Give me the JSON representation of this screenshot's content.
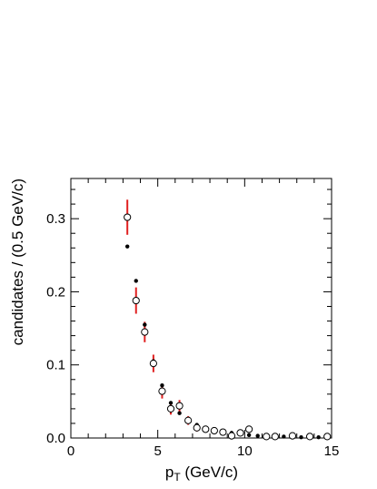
{
  "chart_data": {
    "type": "scatter",
    "xlabel": "p",
    "xlabel_sub": "T",
    "xlabel_unit": "(GeV/c)",
    "ylabel": "candidates / (0.5 GeV/c)",
    "xlim": [
      0,
      15
    ],
    "ylim": [
      0,
      0.355
    ],
    "x_ticks": [
      0,
      5,
      10,
      15
    ],
    "x_tick_labels": [
      "0",
      "5",
      "10",
      "15"
    ],
    "y_ticks": [
      0.0,
      0.1,
      0.2,
      0.3
    ],
    "y_tick_labels": [
      "0.0",
      "0.1",
      "0.2",
      "0.3"
    ],
    "grid": false,
    "legend": "none",
    "colors": {
      "axis": "#000000",
      "error_bar": "#e02020",
      "points": "#000000",
      "open_marker_fill": "#ffffff"
    },
    "series": [
      {
        "marker": "filled-circle",
        "points": [
          {
            "x": 3.25,
            "y": 0.262
          },
          {
            "x": 3.75,
            "y": 0.215
          },
          {
            "x": 4.25,
            "y": 0.155
          },
          {
            "x": 4.75,
            "y": 0.105
          },
          {
            "x": 5.25,
            "y": 0.072
          },
          {
            "x": 5.75,
            "y": 0.048
          },
          {
            "x": 6.25,
            "y": 0.034
          },
          {
            "x": 6.75,
            "y": 0.026
          },
          {
            "x": 7.25,
            "y": 0.018
          },
          {
            "x": 7.75,
            "y": 0.014
          },
          {
            "x": 8.25,
            "y": 0.011
          },
          {
            "x": 8.75,
            "y": 0.009
          },
          {
            "x": 9.25,
            "y": 0.007
          },
          {
            "x": 9.75,
            "y": 0.005
          },
          {
            "x": 10.25,
            "y": 0.004
          },
          {
            "x": 10.75,
            "y": 0.003
          },
          {
            "x": 11.25,
            "y": 0.003
          },
          {
            "x": 11.75,
            "y": 0.002
          },
          {
            "x": 12.25,
            "y": 0.002
          },
          {
            "x": 12.75,
            "y": 0.002
          },
          {
            "x": 13.25,
            "y": 0.001
          },
          {
            "x": 13.75,
            "y": 0.001
          },
          {
            "x": 14.25,
            "y": 0.001
          },
          {
            "x": 14.75,
            "y": 0.001
          }
        ]
      },
      {
        "marker": "open-circle",
        "points": [
          {
            "x": 3.25,
            "y": 0.302,
            "err": 0.024
          },
          {
            "x": 3.75,
            "y": 0.188,
            "err": 0.018
          },
          {
            "x": 4.25,
            "y": 0.145,
            "err": 0.014
          },
          {
            "x": 4.75,
            "y": 0.102,
            "err": 0.012
          },
          {
            "x": 5.25,
            "y": 0.064,
            "err": 0.01
          },
          {
            "x": 5.75,
            "y": 0.04,
            "err": 0.008
          },
          {
            "x": 6.25,
            "y": 0.044,
            "err": 0.008
          },
          {
            "x": 6.75,
            "y": 0.024,
            "err": 0.006
          },
          {
            "x": 7.25,
            "y": 0.014,
            "err": 0.005
          },
          {
            "x": 7.75,
            "y": 0.012,
            "err": 0.004
          },
          {
            "x": 8.25,
            "y": 0.01,
            "err": 0.004
          },
          {
            "x": 8.75,
            "y": 0.008,
            "err": 0.003
          },
          {
            "x": 9.25,
            "y": 0.003,
            "err": 0.003
          },
          {
            "x": 9.75,
            "y": 0.007,
            "err": 0.003
          },
          {
            "x": 10.25,
            "y": 0.012,
            "err": 0.004
          },
          {
            "x": 11.25,
            "y": 0.002,
            "err": 0.002
          },
          {
            "x": 11.75,
            "y": 0.002,
            "err": 0.002
          },
          {
            "x": 12.75,
            "y": 0.003,
            "err": 0.002
          },
          {
            "x": 13.75,
            "y": 0.002,
            "err": 0.002
          },
          {
            "x": 14.75,
            "y": 0.002,
            "err": 0.002
          }
        ]
      }
    ]
  }
}
